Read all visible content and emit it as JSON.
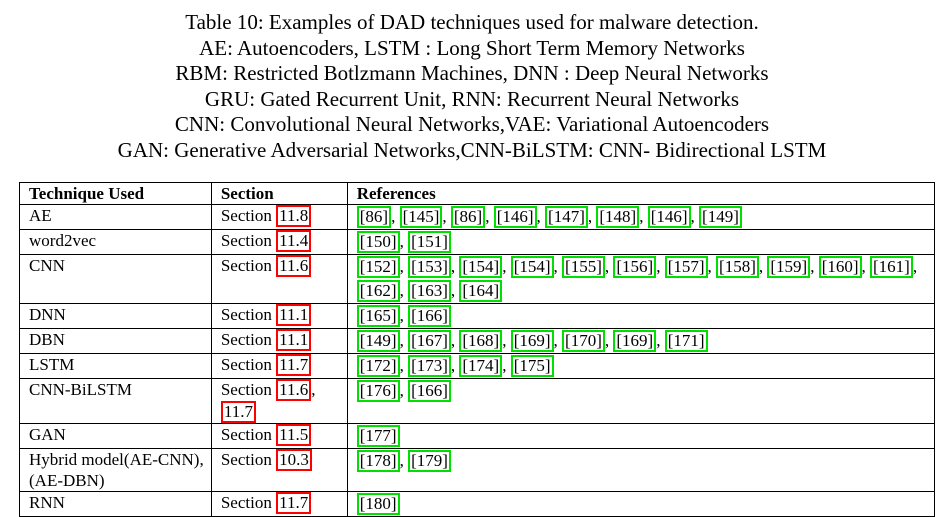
{
  "caption": {
    "lines": [
      "Table 10: Examples of DAD techniques used for malware detection.",
      "AE: Autoencoders, LSTM : Long Short Term Memory Networks",
      "RBM: Restricted Botlzmann Machines, DNN : Deep Neural Networks",
      "GRU: Gated Recurrent Unit, RNN: Recurrent Neural Networks",
      "CNN: Convolutional Neural Networks,VAE: Variational Autoencoders",
      "GAN: Generative Adversarial Networks,CNN-BiLSTM: CNN- Bidirectional LSTM"
    ]
  },
  "table": {
    "headers": [
      "Technique Used",
      "Section",
      "References"
    ],
    "section_prefix": "Section",
    "rows": [
      {
        "technique": "AE",
        "sections": [
          "11.8"
        ],
        "refs": [
          "86",
          "145",
          "86",
          "146",
          "147",
          "148",
          "146",
          "149"
        ]
      },
      {
        "technique": "word2vec",
        "sections": [
          "11.4"
        ],
        "refs": [
          "150",
          "151"
        ]
      },
      {
        "technique": "CNN",
        "sections": [
          "11.6"
        ],
        "refs": [
          "152",
          "153",
          "154",
          "154",
          "155",
          "156",
          "157",
          "158",
          "159",
          "160",
          "161",
          "162",
          "163",
          "164"
        ]
      },
      {
        "technique": "DNN",
        "sections": [
          "11.1"
        ],
        "refs": [
          "165",
          "166"
        ]
      },
      {
        "technique": "DBN",
        "sections": [
          "11.1"
        ],
        "refs": [
          "149",
          "167",
          "168",
          "169",
          "170",
          "169",
          "171"
        ]
      },
      {
        "technique": "LSTM",
        "sections": [
          "11.7"
        ],
        "refs": [
          "172",
          "173",
          "174",
          "175"
        ]
      },
      {
        "technique": "CNN-BiLSTM",
        "sections": [
          "11.6",
          "11.7"
        ],
        "refs": [
          "176",
          "166"
        ]
      },
      {
        "technique": "GAN",
        "sections": [
          "11.5"
        ],
        "refs": [
          "177"
        ]
      },
      {
        "technique": "Hybrid model(AE-CNN),(AE-DBN)",
        "sections": [
          "10.3"
        ],
        "refs": [
          "178",
          "179"
        ]
      },
      {
        "technique": "RNN",
        "sections": [
          "11.7"
        ],
        "refs": [
          "180"
        ]
      }
    ]
  },
  "colors": {
    "section_link_border": "#ff0000",
    "reference_link_border": "#00e000"
  }
}
